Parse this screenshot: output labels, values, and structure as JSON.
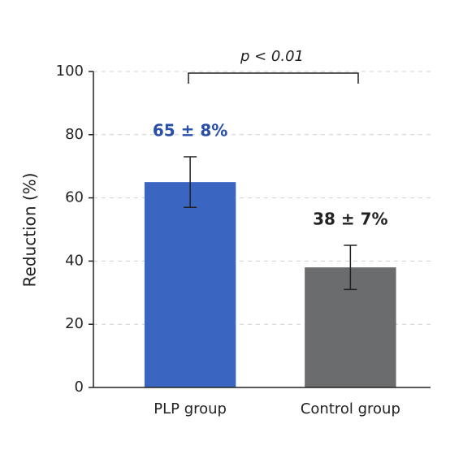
{
  "chart_data": {
    "type": "bar",
    "y_label": "Reduction (%)",
    "annotation": "p < 0.01",
    "categories": [
      "PLP group",
      "Control group"
    ],
    "values": [
      65,
      38
    ],
    "errors": [
      8,
      7
    ],
    "value_labels": [
      "65 ± 8%",
      "38 ± 7%"
    ],
    "colors": [
      "#3a66c2",
      "#6b6c6e"
    ],
    "value_label_colors": [
      "#2a4fa8",
      "#222222"
    ],
    "ylim": [
      0,
      100
    ],
    "yticks": [
      0,
      20,
      40,
      60,
      80,
      100
    ],
    "grid": true
  }
}
